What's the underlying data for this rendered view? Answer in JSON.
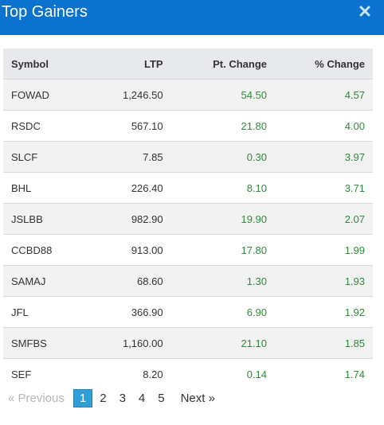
{
  "window": {
    "title": "Top Gainers",
    "close_icon": "close-icon"
  },
  "table": {
    "headers": {
      "symbol": "Symbol",
      "ltp": "LTP",
      "pt_change": "Pt. Change",
      "pct_change": "% Change"
    },
    "rows": [
      {
        "symbol": "FOWAD",
        "ltp": "1,246.50",
        "pt_change": "54.50",
        "pct_change": "4.57"
      },
      {
        "symbol": "RSDC",
        "ltp": "567.10",
        "pt_change": "21.80",
        "pct_change": "4.00"
      },
      {
        "symbol": "SLCF",
        "ltp": "7.85",
        "pt_change": "0.30",
        "pct_change": "3.97"
      },
      {
        "symbol": "BHL",
        "ltp": "226.40",
        "pt_change": "8.10",
        "pct_change": "3.71"
      },
      {
        "symbol": "JSLBB",
        "ltp": "982.90",
        "pt_change": "19.90",
        "pct_change": "2.07"
      },
      {
        "symbol": "CCBD88",
        "ltp": "913.00",
        "pt_change": "17.80",
        "pct_change": "1.99"
      },
      {
        "symbol": "SAMAJ",
        "ltp": "68.60",
        "pt_change": "1.30",
        "pct_change": "1.93"
      },
      {
        "symbol": "JFL",
        "ltp": "366.90",
        "pt_change": "6.90",
        "pct_change": "1.92"
      },
      {
        "symbol": "SMFBS",
        "ltp": "1,160.00",
        "pt_change": "21.10",
        "pct_change": "1.85"
      },
      {
        "symbol": "SEF",
        "ltp": "8.20",
        "pt_change": "0.14",
        "pct_change": "1.74"
      }
    ]
  },
  "pagination": {
    "previous": "«  Previous",
    "pages": [
      "1",
      "2",
      "3",
      "4",
      "5"
    ],
    "active_page": "1",
    "next": "Next  »"
  },
  "colors": {
    "header_bg": "#0b72cf",
    "positive": "#2e8b3a",
    "active_page": "#2f9fd7"
  }
}
